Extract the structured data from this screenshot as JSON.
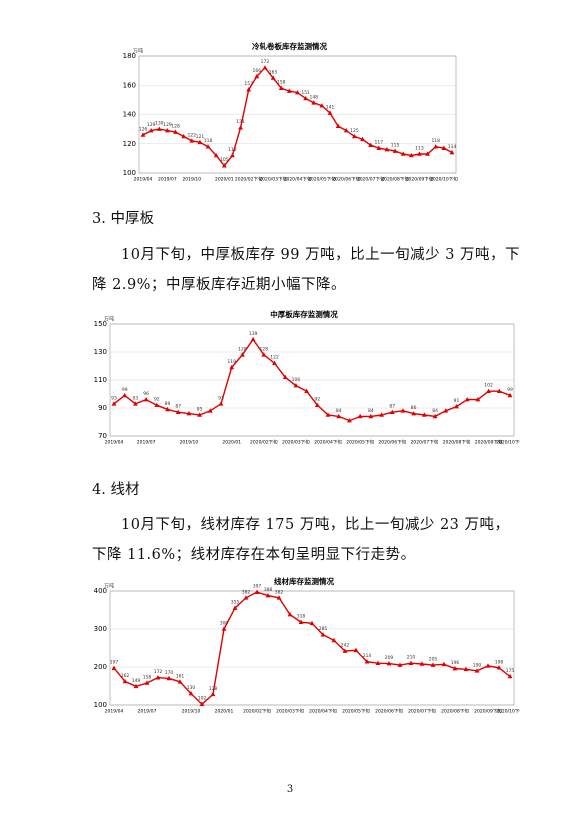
{
  "chart_data": [
    {
      "type": "line",
      "title": "冷轧卷板库存监测情况",
      "y_unit": "万吨",
      "color": "#e00000",
      "grid": true,
      "ylim": [
        100,
        180
      ],
      "yticks": [
        100,
        120,
        140,
        160,
        180
      ],
      "categories": [
        "2019/04",
        null,
        null,
        "2019/07",
        null,
        null,
        "2019/10",
        null,
        null,
        null,
        "2020/01",
        null,
        null,
        "2020/02下旬",
        null,
        null,
        "2020/03下旬",
        null,
        null,
        "2020/04下旬",
        null,
        null,
        "2020/05下旬",
        null,
        null,
        "2020/06下旬",
        null,
        null,
        "2020/07下旬",
        null,
        null,
        "2020/08下旬",
        null,
        null,
        "2020/09下旬",
        null,
        null,
        "2020/10下旬",
        null
      ],
      "values": [
        126,
        129,
        130,
        129,
        128,
        125,
        122,
        121,
        118,
        112,
        105,
        112,
        131,
        157,
        166,
        172,
        165,
        158,
        156,
        155,
        151,
        148,
        146,
        141,
        132,
        129,
        125,
        123,
        119,
        117,
        116,
        115,
        113,
        112,
        113,
        113,
        118,
        117,
        114
      ],
      "value_labels": [
        "126",
        "129",
        "130",
        "129",
        "128",
        null,
        "122",
        "121",
        "118",
        null,
        "105",
        "112",
        "131",
        "157",
        "166",
        "172",
        "165",
        "158",
        null,
        null,
        "151",
        "148",
        null,
        "141",
        null,
        null,
        "125",
        null,
        null,
        "117",
        null,
        "115",
        null,
        null,
        "113",
        null,
        "118",
        null,
        "114"
      ]
    },
    {
      "type": "line",
      "title": "中厚板库存监测情况",
      "y_unit": "万吨",
      "color": "#e00000",
      "grid": true,
      "ylim": [
        70,
        150
      ],
      "yticks": [
        70,
        90,
        110,
        130,
        150
      ],
      "categories": [
        "2019/04",
        null,
        null,
        "2019/07",
        null,
        null,
        null,
        "2019/10",
        null,
        null,
        null,
        "2020/01",
        null,
        null,
        "2020/02下旬",
        null,
        null,
        "2020/03下旬",
        null,
        null,
        "2020/04下旬",
        null,
        null,
        "2020/05下旬",
        null,
        null,
        "2020/06下旬",
        null,
        null,
        "2020/07下旬",
        null,
        null,
        "2020/08下旬",
        null,
        null,
        "2020/09下旬",
        null,
        "2020/10下旬"
      ],
      "values": [
        93,
        99,
        93,
        96,
        92,
        89,
        87,
        86,
        85,
        88,
        93,
        119,
        128,
        139,
        128,
        122,
        112,
        106,
        102,
        92,
        85,
        84,
        81,
        84,
        84,
        85,
        87,
        88,
        86,
        85,
        84,
        88,
        91,
        96,
        96,
        102,
        102,
        99
      ],
      "value_labels": [
        "93",
        "99",
        "93",
        "96",
        "92",
        "89",
        "87",
        null,
        "85",
        null,
        "93",
        "119",
        "128",
        "139",
        "128",
        "122",
        null,
        "106",
        null,
        "92",
        null,
        "84",
        null,
        null,
        "84",
        null,
        "87",
        null,
        "86",
        null,
        "84",
        null,
        "91",
        null,
        null,
        "102",
        null,
        "99"
      ]
    },
    {
      "type": "line",
      "title": "线材库存监测情况",
      "y_unit": "万吨",
      "color": "#e00000",
      "grid": true,
      "ylim": [
        100,
        400
      ],
      "yticks": [
        100,
        200,
        300,
        400
      ],
      "categories": [
        "2019/04",
        null,
        null,
        "2019/07",
        null,
        null,
        null,
        "2019/10",
        null,
        null,
        "2020/01",
        null,
        null,
        "2020/02下旬",
        null,
        null,
        "2020/03下旬",
        null,
        null,
        "2020/04下旬",
        null,
        null,
        "2020/05下旬",
        null,
        null,
        "2020/06下旬",
        null,
        null,
        "2020/07下旬",
        null,
        null,
        "2020/08下旬",
        null,
        null,
        "2020/09下旬",
        null,
        "2020/10下旬"
      ],
      "values": [
        197,
        162,
        149,
        158,
        172,
        170,
        161,
        130,
        102,
        128,
        300,
        355,
        382,
        397,
        388,
        382,
        338,
        318,
        315,
        285,
        270,
        242,
        244,
        214,
        210,
        209,
        205,
        210,
        208,
        205,
        207,
        196,
        194,
        190,
        203,
        198,
        175
      ],
      "value_labels": [
        "197",
        "162",
        "149",
        "158",
        "172",
        "170",
        "161",
        "130",
        "102",
        "128",
        "300",
        "355",
        "382",
        "397",
        "388",
        "382",
        null,
        "318",
        null,
        "285",
        null,
        "242",
        null,
        "214",
        null,
        "209",
        null,
        "210",
        null,
        "205",
        null,
        "196",
        null,
        "190",
        null,
        "198",
        "175"
      ]
    }
  ],
  "sections": [
    {
      "heading": "3. 中厚板",
      "text": "10月下旬，中厚板库存 99 万吨，比上一旬减少 3 万吨，下降 2.9%；中厚板库存近期小幅下降。"
    },
    {
      "heading": "4. 线材",
      "text": "10月下旬，线材库存 175 万吨，比上一旬减少 23 万吨，下降 11.6%；线材库存在本旬呈明显下行走势。"
    }
  ],
  "page_number": "3"
}
